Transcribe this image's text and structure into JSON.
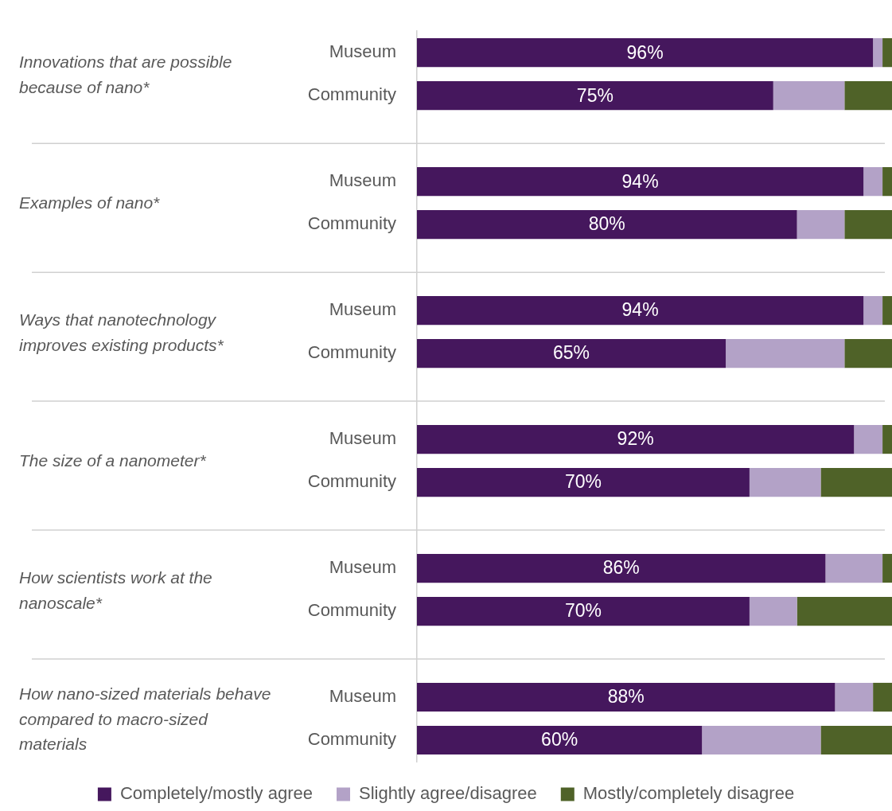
{
  "chart_data": {
    "type": "bar",
    "orientation": "horizontal",
    "stacked": true,
    "legend": "bottom",
    "tick_labels": "y",
    "xlim": [
      0,
      100
    ],
    "categories": [
      "Museum",
      "Community",
      null,
      "Museum",
      "Community",
      null,
      "Museum",
      "Community",
      null,
      "Museum",
      "Community",
      null,
      "Museum",
      "Community",
      null,
      "Museum",
      "Community"
    ],
    "series": [
      {
        "name": "Completely/mostly agree",
        "color": "#45175d",
        "values": [
          96,
          75,
          null,
          94,
          80,
          null,
          94,
          65,
          null,
          92,
          70,
          null,
          86,
          70,
          null,
          88,
          60
        ],
        "value_labels": [
          "96%",
          "75%",
          null,
          "94%",
          "80%",
          null,
          "94%",
          "65%",
          null,
          "92%",
          "70%",
          null,
          "86%",
          "70%",
          null,
          "88%",
          "60%"
        ]
      },
      {
        "name": "Slightly agree/disagree",
        "color": "#b3a2c7",
        "values": [
          2,
          15,
          null,
          4,
          10,
          null,
          4,
          25,
          null,
          6,
          15,
          null,
          12,
          10,
          null,
          8,
          25
        ]
      },
      {
        "name": "Mostly/completely disagree",
        "color": "#4f6228",
        "values": [
          2,
          10,
          null,
          2,
          10,
          null,
          2,
          10,
          null,
          2,
          15,
          null,
          2,
          20,
          null,
          4,
          15
        ]
      }
    ],
    "annotations": [
      "Innovations that are possible because of nano*",
      "Examples of nano*",
      "Ways that nanotechnology improves existing products*",
      "The size of a nanometer*",
      "How scientists work at the nanoscale*",
      "How nano-sized materials behave compared to macro-sized materials"
    ]
  }
}
